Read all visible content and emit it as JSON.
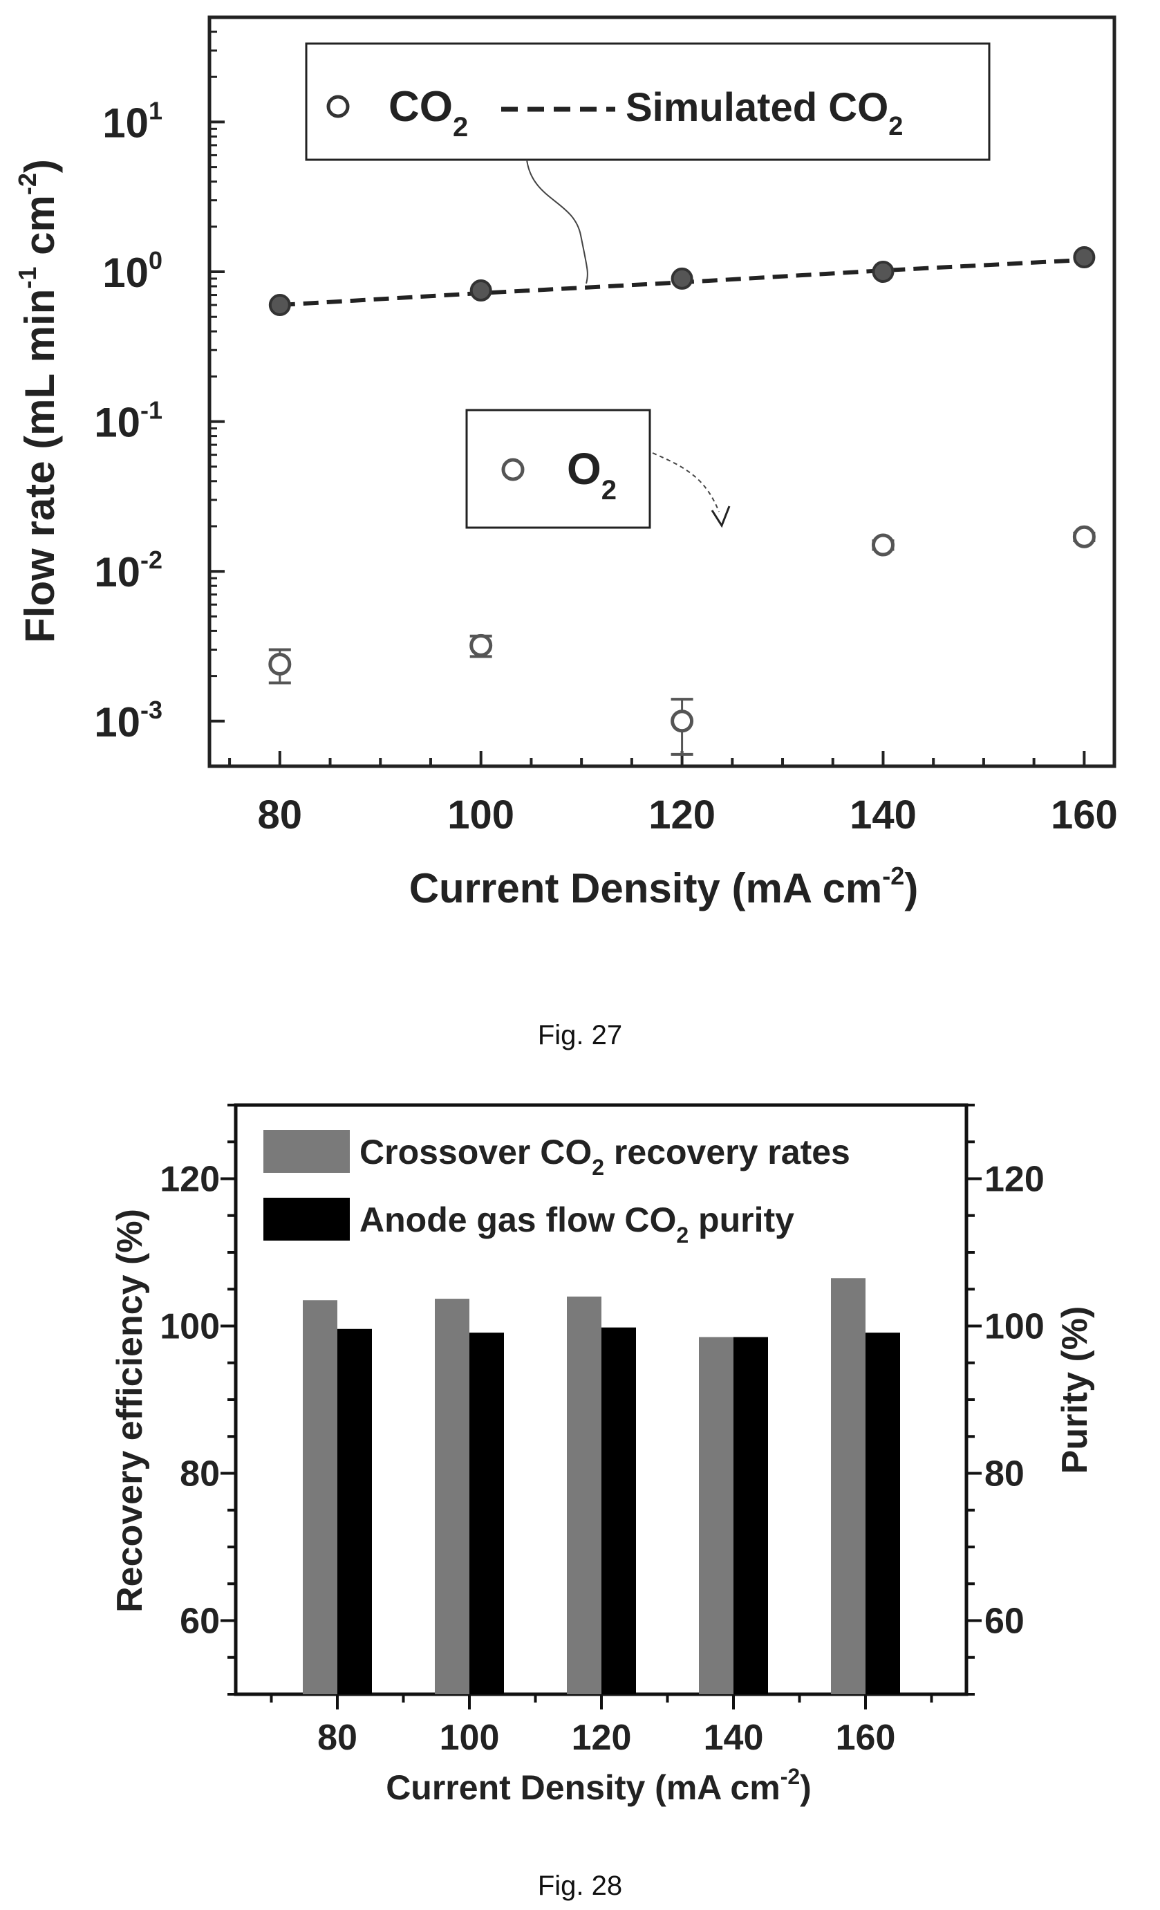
{
  "chart_data": [
    {
      "type": "scatter",
      "xlabel": "Current Density (mA cm",
      "xlabel_sup": "-2",
      "xlabel_end": ")",
      "ylabel_parts": [
        "Flow rate (mL min",
        "-1",
        " cm",
        "-2",
        ")"
      ],
      "yscale": "log",
      "xlim": [
        73,
        163
      ],
      "ylim": [
        0.0005,
        50
      ],
      "xticks": [
        80,
        100,
        120,
        140,
        160
      ],
      "xtick_labels": [
        "80",
        "100",
        "120",
        "140",
        "160"
      ],
      "yticks": [
        0.001,
        0.01,
        0.1,
        1,
        10
      ],
      "ytick_labels": [
        {
          "base": "10",
          "exp": "-3"
        },
        {
          "base": "10",
          "exp": "-2"
        },
        {
          "base": "10",
          "exp": "-1"
        },
        {
          "base": "10",
          "exp": "0"
        },
        {
          "base": "10",
          "exp": "1"
        }
      ],
      "series": [
        {
          "name": "CO2",
          "legend_base": "CO",
          "legend_sub": "2",
          "marker": "filled-circle",
          "x": [
            80,
            100,
            120,
            140,
            160
          ],
          "y": [
            0.6,
            0.75,
            0.9,
            1.0,
            1.25
          ]
        },
        {
          "name": "Simulated CO2",
          "legend_base": "Simulated CO",
          "legend_sub": "2",
          "style": "dashed-line",
          "x": [
            80,
            100,
            120,
            140,
            160
          ],
          "y": [
            0.6,
            0.72,
            0.85,
            1.02,
            1.2
          ]
        },
        {
          "name": "O2",
          "legend_base": "O",
          "legend_sub": "2",
          "marker": "open-circle",
          "x": [
            80,
            100,
            120,
            140,
            160
          ],
          "y": [
            0.0024,
            0.0032,
            0.001,
            0.015,
            0.017
          ],
          "err_low": [
            0.0018,
            0.0027,
            0.0006,
            0.014,
            0.016
          ],
          "err_high": [
            0.003,
            0.0037,
            0.0014,
            0.016,
            0.018
          ]
        }
      ],
      "caption": "Fig. 27"
    },
    {
      "type": "bar",
      "categories": [
        "80",
        "100",
        "120",
        "140",
        "160"
      ],
      "xlabel": "Current Density (mA cm",
      "xlabel_sup": "-2",
      "xlabel_end": ")",
      "ylabel": "Recovery efficiency (%)",
      "ylabel_right": "Purity (%)",
      "ylim": [
        50,
        130
      ],
      "yticks": [
        60,
        80,
        100,
        120
      ],
      "series": [
        {
          "name": "Crossover CO2 recovery rates",
          "legend_pre": "Crossover CO",
          "legend_sub": "2",
          "legend_post": " recovery rates",
          "color": "#7a7a7a",
          "values": [
            103.5,
            103.7,
            104.0,
            98.5,
            106.5
          ]
        },
        {
          "name": "Anode gas flow CO2 purity",
          "legend_pre": "Anode gas flow CO",
          "legend_sub": "2",
          "legend_post": " purity",
          "color": "#000000",
          "values": [
            99.6,
            99.1,
            99.8,
            98.5,
            99.1
          ]
        }
      ],
      "caption": "Fig. 28"
    }
  ]
}
